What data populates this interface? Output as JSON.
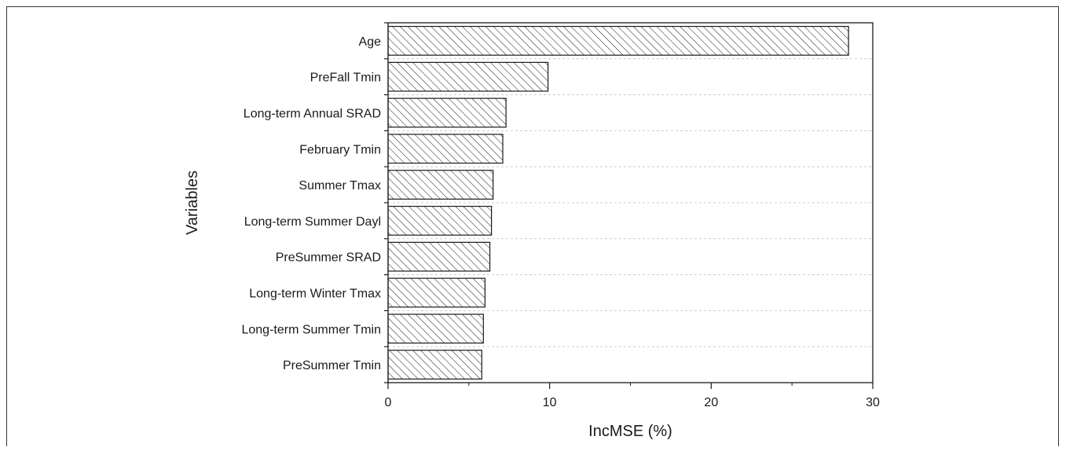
{
  "chart_data": {
    "type": "bar",
    "orientation": "horizontal",
    "categories": [
      "Age",
      "PreFall Tmin",
      "Long-term Annual SRAD",
      "February Tmin",
      "Summer Tmax",
      "Long-term Summer Dayl",
      "PreSummer SRAD",
      "Long-term Winter Tmax",
      "Long-term Summer Tmin",
      "PreSummer Tmin"
    ],
    "values": [
      28.5,
      9.9,
      7.3,
      7.1,
      6.5,
      6.4,
      6.3,
      6.0,
      5.9,
      5.8
    ],
    "xlabel": "IncMSE (%)",
    "ylabel": "Variables",
    "xlim": [
      0,
      30
    ],
    "xticks": [
      "0",
      "10",
      "20",
      "30"
    ],
    "grid": true,
    "bar_pattern": "diagonal-hatch",
    "bar_fill": "#ffffff",
    "bar_stroke": "#1a1a1a"
  }
}
